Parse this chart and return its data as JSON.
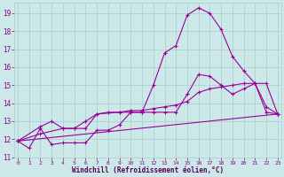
{
  "xlabel": "Windchill (Refroidissement éolien,°C)",
  "background_color": "#cce8e8",
  "grid_color": "#aacccc",
  "line_color": "#990099",
  "xlim": [
    -0.3,
    23.3
  ],
  "ylim": [
    11.0,
    19.6
  ],
  "yticks": [
    11,
    12,
    13,
    14,
    15,
    16,
    17,
    18,
    19
  ],
  "xticks": [
    0,
    1,
    2,
    3,
    4,
    5,
    6,
    7,
    8,
    9,
    10,
    11,
    12,
    13,
    14,
    15,
    16,
    17,
    18,
    19,
    20,
    21,
    22,
    23
  ],
  "line1_x": [
    0,
    1,
    2,
    3,
    4,
    5,
    6,
    7,
    8,
    9,
    10,
    11,
    12,
    13,
    14,
    15,
    16,
    17,
    18,
    19,
    20,
    21,
    22,
    23
  ],
  "line1_y": [
    11.9,
    11.5,
    12.6,
    11.7,
    11.8,
    11.8,
    11.8,
    12.5,
    12.5,
    12.8,
    13.5,
    13.5,
    15.0,
    16.8,
    17.2,
    18.9,
    19.3,
    19.0,
    18.1,
    16.6,
    15.8,
    15.1,
    13.8,
    13.4
  ],
  "line2_x": [
    0,
    2,
    3,
    4,
    5,
    6,
    7,
    8,
    9,
    10,
    11,
    12,
    13,
    14,
    15,
    16,
    17,
    18,
    19,
    20,
    21,
    22,
    23
  ],
  "line2_y": [
    11.9,
    12.7,
    13.0,
    12.6,
    12.6,
    12.6,
    13.4,
    13.5,
    13.5,
    13.5,
    13.5,
    13.5,
    13.5,
    13.5,
    14.5,
    15.6,
    15.5,
    15.0,
    14.5,
    14.8,
    15.1,
    13.5,
    13.4
  ],
  "line3_x": [
    0,
    2,
    4,
    5,
    6,
    7,
    9,
    10,
    11,
    12,
    13,
    14,
    15,
    16,
    17,
    18,
    19,
    20,
    21,
    22,
    23
  ],
  "line3_y": [
    11.9,
    12.3,
    12.6,
    12.6,
    13.0,
    13.4,
    13.5,
    13.6,
    13.6,
    13.7,
    13.8,
    13.9,
    14.1,
    14.6,
    14.8,
    14.9,
    15.0,
    15.1,
    15.1,
    15.1,
    13.4
  ],
  "line4_x": [
    0,
    23
  ],
  "line4_y": [
    11.9,
    13.4
  ]
}
